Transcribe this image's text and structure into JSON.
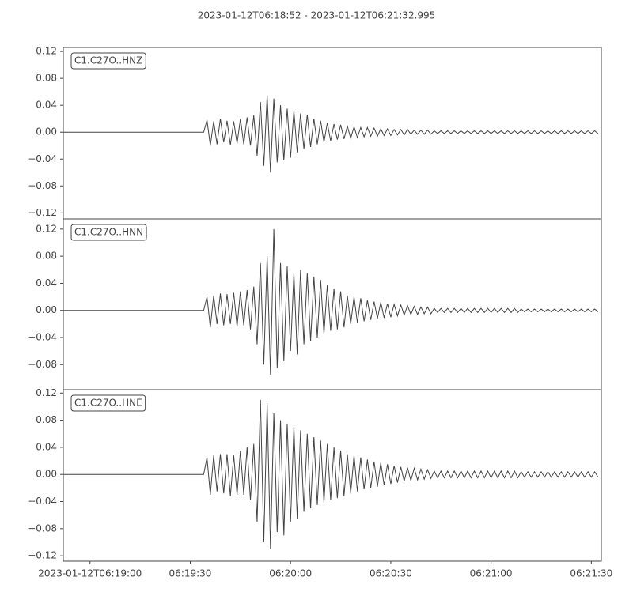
{
  "chart_data": {
    "type": "line",
    "title": "2023-01-12T06:18:52  -  2023-01-12T06:21:32.995",
    "color": "#444444",
    "xlim": [
      "2023-01-12T06:18:52",
      "2023-01-12T06:21:32.995"
    ],
    "xticks": [
      {
        "value": "2023-01-12T06:19:00",
        "label": "2023-01-12T06:19:00"
      },
      {
        "value": "2023-01-12T06:19:30",
        "label": "06:19:30"
      },
      {
        "value": "2023-01-12T06:20:00",
        "label": "06:20:00"
      },
      {
        "value": "2023-01-12T06:20:30",
        "label": "06:20:30"
      },
      {
        "value": "2023-01-12T06:21:00",
        "label": "06:21:00"
      },
      {
        "value": "2023-01-12T06:21:30",
        "label": "06:21:30"
      }
    ],
    "x": [
      "2023-01-12T06:18:52",
      "2023-01-12T06:18:53",
      "2023-01-12T06:18:54",
      "2023-01-12T06:18:55",
      "2023-01-12T06:18:56",
      "2023-01-12T06:18:57",
      "2023-01-12T06:18:58",
      "2023-01-12T06:18:59",
      "2023-01-12T06:19:00",
      "2023-01-12T06:19:01",
      "2023-01-12T06:19:02",
      "2023-01-12T06:19:03",
      "2023-01-12T06:19:04",
      "2023-01-12T06:19:05",
      "2023-01-12T06:19:06",
      "2023-01-12T06:19:07",
      "2023-01-12T06:19:08",
      "2023-01-12T06:19:09",
      "2023-01-12T06:19:10",
      "2023-01-12T06:19:11",
      "2023-01-12T06:19:12",
      "2023-01-12T06:19:13",
      "2023-01-12T06:19:14",
      "2023-01-12T06:19:15",
      "2023-01-12T06:19:16",
      "2023-01-12T06:19:17",
      "2023-01-12T06:19:18",
      "2023-01-12T06:19:19",
      "2023-01-12T06:19:20",
      "2023-01-12T06:19:21",
      "2023-01-12T06:19:22",
      "2023-01-12T06:19:23",
      "2023-01-12T06:19:24",
      "2023-01-12T06:19:25",
      "2023-01-12T06:19:26",
      "2023-01-12T06:19:27",
      "2023-01-12T06:19:28",
      "2023-01-12T06:19:29",
      "2023-01-12T06:19:30",
      "2023-01-12T06:19:31",
      "2023-01-12T06:19:32",
      "2023-01-12T06:19:33",
      "2023-01-12T06:19:34",
      "2023-01-12T06:19:35",
      "2023-01-12T06:19:36",
      "2023-01-12T06:19:37",
      "2023-01-12T06:19:38",
      "2023-01-12T06:19:39",
      "2023-01-12T06:19:40",
      "2023-01-12T06:19:41",
      "2023-01-12T06:19:42",
      "2023-01-12T06:19:43",
      "2023-01-12T06:19:44",
      "2023-01-12T06:19:45",
      "2023-01-12T06:19:46",
      "2023-01-12T06:19:47",
      "2023-01-12T06:19:48",
      "2023-01-12T06:19:49",
      "2023-01-12T06:19:50",
      "2023-01-12T06:19:51",
      "2023-01-12T06:19:52",
      "2023-01-12T06:19:53",
      "2023-01-12T06:19:54",
      "2023-01-12T06:19:55",
      "2023-01-12T06:19:56",
      "2023-01-12T06:19:57",
      "2023-01-12T06:19:58",
      "2023-01-12T06:19:59",
      "2023-01-12T06:20:00",
      "2023-01-12T06:20:01",
      "2023-01-12T06:20:02",
      "2023-01-12T06:20:03",
      "2023-01-12T06:20:04",
      "2023-01-12T06:20:05",
      "2023-01-12T06:20:06",
      "2023-01-12T06:20:07",
      "2023-01-12T06:20:08",
      "2023-01-12T06:20:09",
      "2023-01-12T06:20:10",
      "2023-01-12T06:20:11",
      "2023-01-12T06:20:12",
      "2023-01-12T06:20:13",
      "2023-01-12T06:20:14",
      "2023-01-12T06:20:15",
      "2023-01-12T06:20:16",
      "2023-01-12T06:20:17",
      "2023-01-12T06:20:18",
      "2023-01-12T06:20:19",
      "2023-01-12T06:20:20",
      "2023-01-12T06:20:21",
      "2023-01-12T06:20:22",
      "2023-01-12T06:20:23",
      "2023-01-12T06:20:24",
      "2023-01-12T06:20:25",
      "2023-01-12T06:20:26",
      "2023-01-12T06:20:27",
      "2023-01-12T06:20:28",
      "2023-01-12T06:20:29",
      "2023-01-12T06:20:30",
      "2023-01-12T06:20:31",
      "2023-01-12T06:20:32",
      "2023-01-12T06:20:33",
      "2023-01-12T06:20:34",
      "2023-01-12T06:20:35",
      "2023-01-12T06:20:36",
      "2023-01-12T06:20:37",
      "2023-01-12T06:20:38",
      "2023-01-12T06:20:39",
      "2023-01-12T06:20:40",
      "2023-01-12T06:20:41",
      "2023-01-12T06:20:42",
      "2023-01-12T06:20:43",
      "2023-01-12T06:20:44",
      "2023-01-12T06:20:45",
      "2023-01-12T06:20:46",
      "2023-01-12T06:20:47",
      "2023-01-12T06:20:48",
      "2023-01-12T06:20:49",
      "2023-01-12T06:20:50",
      "2023-01-12T06:20:51",
      "2023-01-12T06:20:52",
      "2023-01-12T06:20:53",
      "2023-01-12T06:20:54",
      "2023-01-12T06:20:55",
      "2023-01-12T06:20:56",
      "2023-01-12T06:20:57",
      "2023-01-12T06:20:58",
      "2023-01-12T06:20:59",
      "2023-01-12T06:21:00",
      "2023-01-12T06:21:01",
      "2023-01-12T06:21:02",
      "2023-01-12T06:21:03",
      "2023-01-12T06:21:04",
      "2023-01-12T06:21:05",
      "2023-01-12T06:21:06",
      "2023-01-12T06:21:07",
      "2023-01-12T06:21:08",
      "2023-01-12T06:21:09",
      "2023-01-12T06:21:10",
      "2023-01-12T06:21:11",
      "2023-01-12T06:21:12",
      "2023-01-12T06:21:13",
      "2023-01-12T06:21:14",
      "2023-01-12T06:21:15",
      "2023-01-12T06:21:16",
      "2023-01-12T06:21:17",
      "2023-01-12T06:21:18",
      "2023-01-12T06:21:19",
      "2023-01-12T06:21:20",
      "2023-01-12T06:21:21",
      "2023-01-12T06:21:22",
      "2023-01-12T06:21:23",
      "2023-01-12T06:21:24",
      "2023-01-12T06:21:25",
      "2023-01-12T06:21:26",
      "2023-01-12T06:21:27",
      "2023-01-12T06:21:28",
      "2023-01-12T06:21:29",
      "2023-01-12T06:21:30",
      "2023-01-12T06:21:31",
      "2023-01-12T06:21:32"
    ],
    "panels": [
      {
        "label": "C1.C27O..HNZ",
        "ylim": [
          -0.129,
          0.126
        ],
        "yticks": [
          0.12,
          0.08,
          0.04,
          {
            "value": 0,
            "label": "0.00"
          },
          {
            "value": -0.04,
            "label": "−0.04"
          },
          {
            "value": -0.08,
            "label": "−0.08"
          },
          {
            "value": -0.12,
            "label": "−0.12"
          }
        ],
        "values": [
          0,
          0,
          0,
          0,
          0,
          0,
          0,
          0,
          0,
          0,
          0,
          0,
          0,
          0,
          0,
          0,
          0,
          0,
          0,
          0,
          0,
          0,
          0,
          0,
          0,
          0,
          0,
          0,
          0,
          0,
          0,
          0,
          0,
          0,
          0,
          0,
          0,
          0,
          0,
          0,
          0,
          0,
          0,
          0.018,
          -0.02,
          0.016,
          -0.018,
          0.02,
          -0.015,
          0.017,
          -0.019,
          0.016,
          -0.017,
          0.02,
          -0.018,
          0.022,
          -0.02,
          0.025,
          -0.035,
          0.045,
          -0.05,
          0.055,
          -0.06,
          0.05,
          -0.045,
          0.04,
          -0.042,
          0.035,
          -0.038,
          0.032,
          -0.03,
          0.028,
          -0.025,
          0.026,
          -0.022,
          0.02,
          -0.018,
          0.017,
          -0.015,
          0.014,
          -0.013,
          0.012,
          -0.011,
          0.011,
          -0.01,
          0.009,
          -0.009,
          0.008,
          -0.008,
          0.007,
          -0.007,
          0.007,
          -0.006,
          0.006,
          -0.006,
          0.005,
          -0.005,
          0.005,
          -0.005,
          0.004,
          -0.004,
          0.004,
          -0.004,
          0.004,
          -0.003,
          0.003,
          -0.003,
          0.003,
          -0.003,
          0.003,
          -0.003,
          0.002,
          -0.002,
          0.002,
          -0.002,
          0.002,
          -0.002,
          0.002,
          -0.002,
          0.002,
          -0.002,
          0.002,
          -0.002,
          0.002,
          -0.002,
          0.002,
          -0.002,
          0.002,
          -0.002,
          0.002,
          -0.002,
          0.002,
          -0.002,
          0.002,
          -0.002,
          0.002,
          -0.002,
          0.002,
          -0.002,
          0.002,
          -0.002,
          0.002,
          -0.002,
          0.002,
          -0.002,
          0.002,
          -0.002,
          0.002,
          -0.002,
          0.002,
          -0.002,
          0.002,
          -0.002,
          0.002,
          -0.002,
          0.002,
          -0.002,
          0.002,
          -0.002,
          0.002,
          -0.002
        ]
      },
      {
        "label": "C1.C27O..HNN",
        "ylim": [
          -0.117,
          0.135
        ],
        "yticks": [
          0.12,
          0.08,
          0.04,
          {
            "value": 0,
            "label": "0.00"
          },
          {
            "value": -0.04,
            "label": "−0.04"
          },
          {
            "value": -0.08,
            "label": "−0.08"
          }
        ],
        "values": [
          0,
          0,
          0,
          0,
          0,
          0,
          0,
          0,
          0,
          0,
          0,
          0,
          0,
          0,
          0,
          0,
          0,
          0,
          0,
          0,
          0,
          0,
          0,
          0,
          0,
          0,
          0,
          0,
          0,
          0,
          0,
          0,
          0,
          0,
          0,
          0,
          0,
          0,
          0,
          0,
          0,
          0,
          0,
          0.02,
          -0.025,
          0.022,
          -0.02,
          0.025,
          -0.022,
          0.024,
          -0.02,
          0.026,
          -0.024,
          0.028,
          -0.022,
          0.03,
          -0.028,
          0.035,
          -0.05,
          0.07,
          -0.08,
          0.08,
          -0.095,
          0.12,
          -0.085,
          0.07,
          -0.075,
          0.065,
          -0.06,
          0.055,
          -0.065,
          0.06,
          -0.05,
          0.055,
          -0.045,
          0.05,
          -0.04,
          0.045,
          -0.035,
          0.038,
          -0.03,
          0.032,
          -0.028,
          0.028,
          -0.025,
          0.022,
          -0.02,
          0.02,
          -0.018,
          0.018,
          -0.016,
          0.015,
          -0.014,
          0.013,
          -0.012,
          0.012,
          -0.011,
          0.01,
          -0.01,
          0.009,
          -0.008,
          0.008,
          -0.007,
          0.007,
          -0.006,
          0.006,
          -0.006,
          0.005,
          -0.005,
          0.005,
          -0.005,
          0.003,
          -0.003,
          0.003,
          -0.003,
          0.003,
          -0.003,
          0.003,
          -0.003,
          0.003,
          -0.003,
          0.003,
          -0.003,
          0.003,
          -0.003,
          0.003,
          -0.003,
          0.003,
          -0.003,
          0.003,
          -0.003,
          0.003,
          -0.003,
          0.003,
          -0.003,
          0.003,
          -0.003,
          0.002,
          -0.002,
          0.002,
          -0.002,
          0.002,
          -0.002,
          0.002,
          -0.002,
          0.002,
          -0.002,
          0.002,
          -0.002,
          0.002,
          -0.002,
          0.002,
          -0.002,
          0.002,
          -0.002,
          0.002,
          -0.002,
          0.002,
          -0.002,
          0.002,
          -0.002
        ]
      },
      {
        "label": "C1.C27O..HNE",
        "ylim": [
          -0.128,
          0.125
        ],
        "yticks": [
          0.12,
          0.08,
          0.04,
          {
            "value": 0,
            "label": "0.00"
          },
          {
            "value": -0.04,
            "label": "−0.04"
          },
          {
            "value": -0.08,
            "label": "−0.08"
          },
          {
            "value": -0.12,
            "label": "−0.12"
          }
        ],
        "values": [
          0,
          0,
          0,
          0,
          0,
          0,
          0,
          0,
          0,
          0,
          0,
          0,
          0,
          0,
          0,
          0,
          0,
          0,
          0,
          0,
          0,
          0,
          0,
          0,
          0,
          0,
          0,
          0,
          0,
          0,
          0,
          0,
          0,
          0,
          0,
          0,
          0,
          0,
          0,
          0,
          0,
          0,
          0,
          0.025,
          -0.03,
          0.028,
          -0.025,
          0.03,
          -0.028,
          0.03,
          -0.032,
          0.028,
          -0.03,
          0.035,
          -0.03,
          0.04,
          -0.038,
          0.045,
          -0.07,
          0.11,
          -0.1,
          0.105,
          -0.11,
          0.09,
          -0.085,
          0.08,
          -0.09,
          0.075,
          -0.07,
          0.07,
          -0.065,
          0.065,
          -0.055,
          0.06,
          -0.05,
          0.055,
          -0.045,
          0.05,
          -0.042,
          0.045,
          -0.038,
          0.04,
          -0.035,
          0.035,
          -0.032,
          0.03,
          -0.028,
          0.028,
          -0.025,
          0.025,
          -0.022,
          0.022,
          -0.02,
          0.019,
          -0.018,
          0.017,
          -0.016,
          0.015,
          -0.014,
          0.013,
          -0.012,
          0.011,
          -0.01,
          0.01,
          -0.009,
          0.009,
          -0.008,
          0.008,
          -0.007,
          0.007,
          -0.006,
          0.005,
          -0.005,
          0.005,
          -0.005,
          0.005,
          -0.005,
          0.005,
          -0.005,
          0.005,
          -0.005,
          0.005,
          -0.005,
          0.005,
          -0.005,
          0.005,
          -0.005,
          0.005,
          -0.005,
          0.005,
          -0.005,
          0.005,
          -0.005,
          0.005,
          -0.005,
          0.005,
          -0.005,
          0.004,
          -0.004,
          0.004,
          -0.004,
          0.004,
          -0.004,
          0.004,
          -0.004,
          0.004,
          -0.004,
          0.004,
          -0.004,
          0.004,
          -0.004,
          0.004,
          -0.004,
          0.004,
          -0.004,
          0.004,
          -0.004,
          0.004,
          -0.004,
          0.004,
          -0.004
        ]
      }
    ]
  }
}
